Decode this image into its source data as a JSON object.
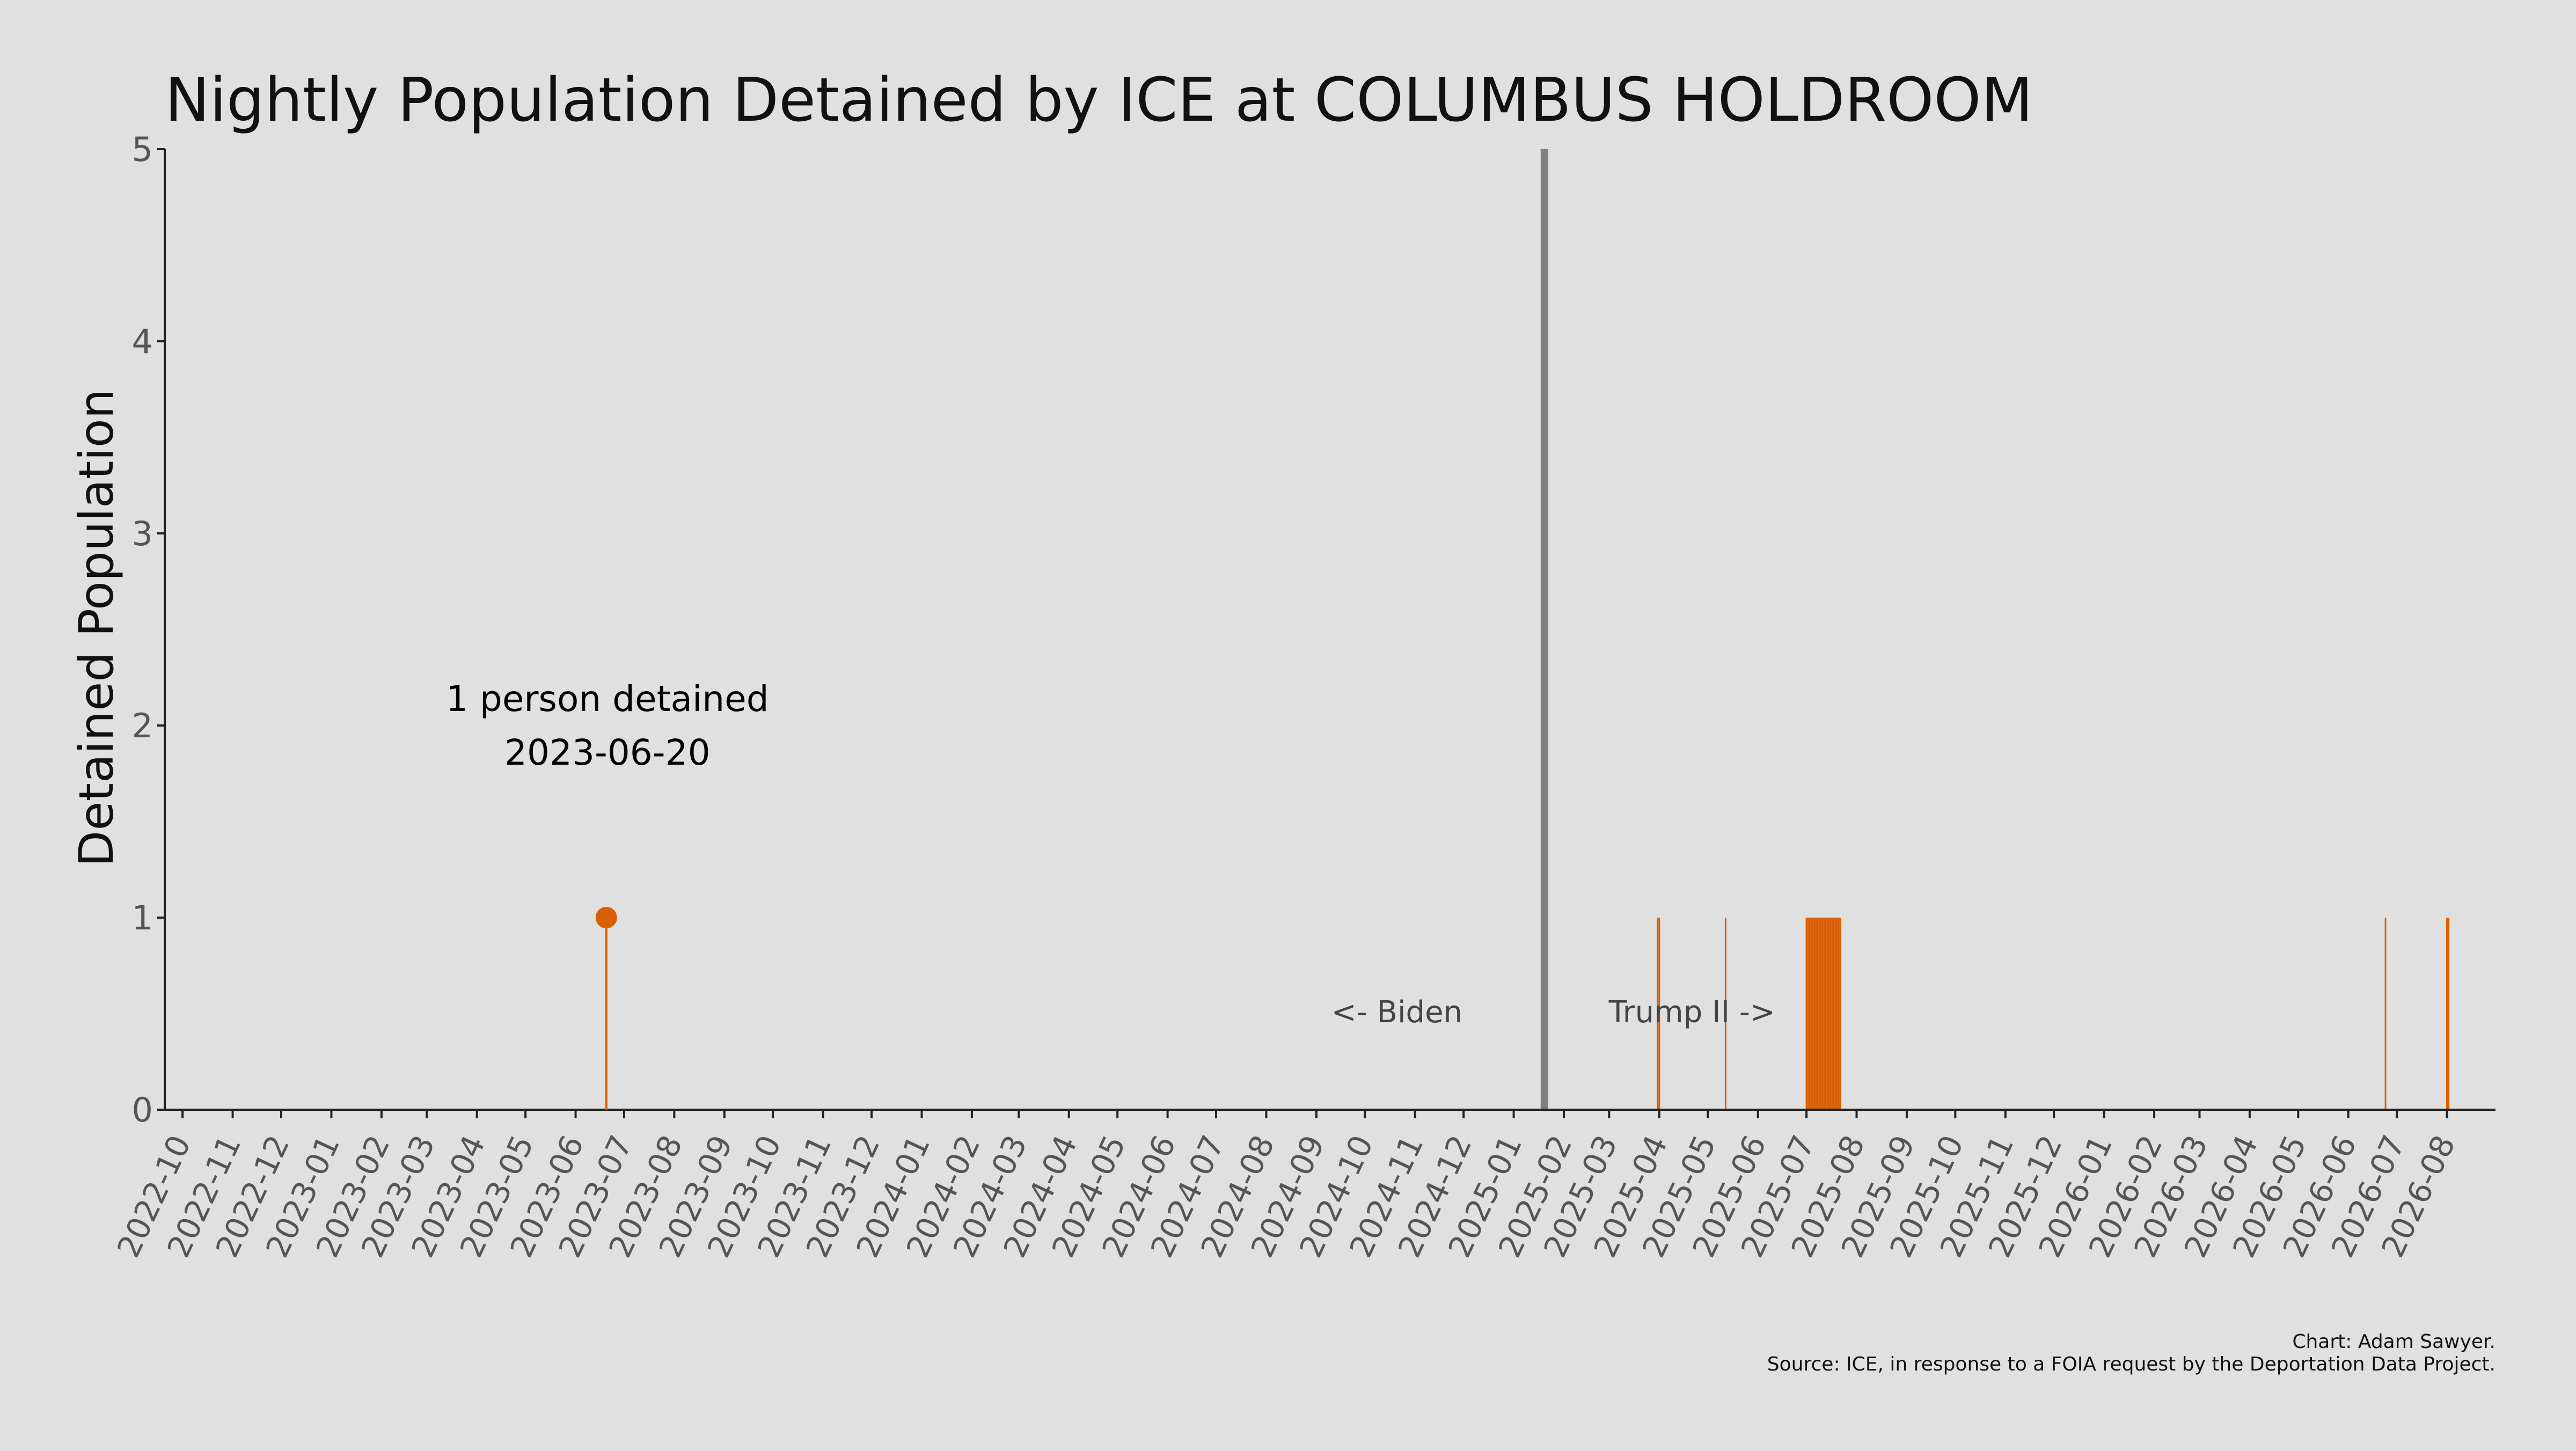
{
  "chart_data": {
    "type": "bar",
    "title": "Nightly Population Detained by ICE at COLUMBUS HOLDROOM",
    "xlabel": "",
    "ylabel": "Detained Population",
    "ylim": [
      0,
      5
    ],
    "xlim": [
      "2022-09-20",
      "2026-08-31"
    ],
    "yticks": [
      0,
      1,
      2,
      3,
      4,
      5
    ],
    "xticks": [
      "2022-10",
      "2022-11",
      "2022-12",
      "2023-01",
      "2023-02",
      "2023-03",
      "2023-04",
      "2023-05",
      "2023-06",
      "2023-07",
      "2023-08",
      "2023-09",
      "2023-10",
      "2023-11",
      "2023-12",
      "2024-01",
      "2024-02",
      "2024-03",
      "2024-04",
      "2024-05",
      "2024-06",
      "2024-07",
      "2024-08",
      "2024-09",
      "2024-10",
      "2024-11",
      "2024-12",
      "2025-01",
      "2025-02",
      "2025-03",
      "2025-04",
      "2025-05",
      "2025-06",
      "2025-07",
      "2025-08",
      "2025-09",
      "2025-10",
      "2025-11",
      "2025-12",
      "2026-01",
      "2026-02",
      "2026-03",
      "2026-04",
      "2026-05",
      "2026-06",
      "2026-07",
      "2026-08"
    ],
    "grid": false,
    "colors": {
      "bar": "#d95f02",
      "divider": "#808080",
      "background": "#e0e0e0",
      "axis": "#222222",
      "tick_label": "#555555"
    },
    "series": [
      {
        "values": [
          {
            "x": "2023-06-20",
            "y": 1
          },
          {
            "x": "2025-03-31",
            "y": 1
          },
          {
            "x": "2025-04-01",
            "y": 1
          },
          {
            "x": "2025-05-12",
            "y": 1
          },
          {
            "x": "2025-07-01",
            "y": 1
          },
          {
            "x": "2025-07-02",
            "y": 1
          },
          {
            "x": "2025-07-03",
            "y": 1
          },
          {
            "x": "2025-07-04",
            "y": 1
          },
          {
            "x": "2025-07-05",
            "y": 1
          },
          {
            "x": "2025-07-06",
            "y": 1
          },
          {
            "x": "2025-07-07",
            "y": 1
          },
          {
            "x": "2025-07-08",
            "y": 1
          },
          {
            "x": "2025-07-09",
            "y": 1
          },
          {
            "x": "2025-07-10",
            "y": 1
          },
          {
            "x": "2025-07-11",
            "y": 1
          },
          {
            "x": "2025-07-12",
            "y": 1
          },
          {
            "x": "2025-07-13",
            "y": 1
          },
          {
            "x": "2025-07-14",
            "y": 1
          },
          {
            "x": "2025-07-15",
            "y": 1
          },
          {
            "x": "2025-07-16",
            "y": 1
          },
          {
            "x": "2025-07-17",
            "y": 1
          },
          {
            "x": "2025-07-18",
            "y": 1
          },
          {
            "x": "2025-07-19",
            "y": 1
          },
          {
            "x": "2025-07-20",
            "y": 1
          },
          {
            "x": "2025-07-21",
            "y": 1
          },
          {
            "x": "2025-07-22",
            "y": 1
          },
          {
            "x": "2026-06-24",
            "y": 1
          },
          {
            "x": "2026-08-01",
            "y": 1
          },
          {
            "x": "2026-08-02",
            "y": 1
          }
        ]
      }
    ],
    "highlight": {
      "x": "2023-06-20",
      "y": 1,
      "label_line1": "1 person detained",
      "label_line2": "2023-06-20"
    },
    "divider": {
      "x": "2025-01-20",
      "label_left": "<- Biden",
      "label_right": "Trump II ->"
    },
    "caption": {
      "line1": "Chart: Adam Sawyer.",
      "line2": "Source: ICE, in response to a FOIA request by the Deportation Data Project."
    }
  }
}
